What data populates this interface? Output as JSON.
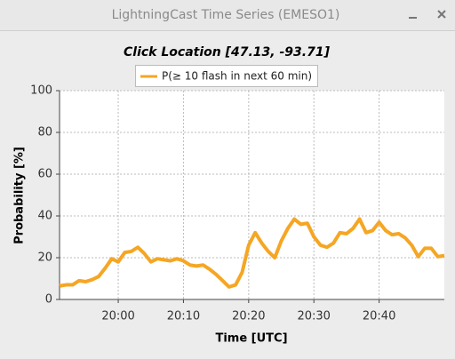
{
  "window": {
    "title": "LightningCast Time Series (EMESO1)"
  },
  "chart_data": {
    "type": "line",
    "title": "Click Location [47.13, -93.71]",
    "x_label": "Time [UTC]",
    "y_label": "Probability [%]",
    "x": [
      "19:51",
      "19:52",
      "19:53",
      "19:54",
      "19:55",
      "19:56",
      "19:57",
      "19:58",
      "19:59",
      "20:00",
      "20:01",
      "20:02",
      "20:03",
      "20:04",
      "20:05",
      "20:06",
      "20:07",
      "20:08",
      "20:09",
      "20:10",
      "20:11",
      "20:12",
      "20:13",
      "20:14",
      "20:15",
      "20:16",
      "20:17",
      "20:18",
      "20:19",
      "20:20",
      "20:21",
      "20:22",
      "20:23",
      "20:24",
      "20:25",
      "20:26",
      "20:27",
      "20:28",
      "20:29",
      "20:30",
      "20:31",
      "20:32",
      "20:33",
      "20:34",
      "20:35",
      "20:36",
      "20:37",
      "20:38",
      "20:39",
      "20:40",
      "20:41",
      "20:42",
      "20:43",
      "20:44",
      "20:45",
      "20:46",
      "20:47",
      "20:48",
      "20:49",
      "20:50"
    ],
    "series": [
      {
        "name": "P(≥ 10 flash in next 60 min)",
        "color": "#f5a623",
        "values": [
          6.5,
          7,
          7,
          9,
          8.5,
          9.5,
          11,
          15,
          19.5,
          18,
          22.5,
          23,
          25,
          22,
          18,
          19.5,
          19,
          18.5,
          19.5,
          18.5,
          16.5,
          16,
          16.5,
          14.5,
          12,
          9,
          6,
          7,
          13,
          26,
          32,
          27,
          23,
          20,
          28,
          34,
          38.5,
          36,
          36.5,
          30,
          26,
          25,
          27,
          32,
          31.5,
          34,
          38.5,
          32,
          33,
          37,
          33,
          31,
          31.5,
          29.5,
          26,
          20.5,
          24.5,
          24.5,
          20.5,
          21
        ]
      }
    ],
    "xlim": [
      "19:51",
      "20:50"
    ],
    "xticks": [
      "20:00",
      "20:10",
      "20:20",
      "20:30",
      "20:40"
    ],
    "ylim": [
      0,
      100
    ],
    "yticks": [
      0,
      20,
      40,
      60,
      80,
      100
    ],
    "grid": true,
    "legend": "top"
  }
}
